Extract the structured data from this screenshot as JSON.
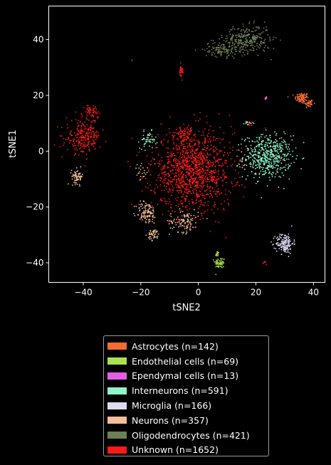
{
  "chart_data": {
    "type": "scatter",
    "xlabel": "tSNE2",
    "ylabel": "tSNE1",
    "xlim": [
      -52,
      44
    ],
    "ylim": [
      -47,
      52
    ],
    "xticks": [
      -40,
      -20,
      0,
      20,
      40
    ],
    "yticks": [
      40,
      20,
      0,
      -20,
      -40
    ],
    "legend_position": "below",
    "series": [
      {
        "name": "Astrocytes (n=142)",
        "color": "#f26b30",
        "clusters": [
          {
            "cx": 36,
            "cy": 19,
            "sx": 1.2,
            "sy": 1.0,
            "n": 100
          },
          {
            "cx": 38.5,
            "cy": 17,
            "sx": 0.8,
            "sy": 0.8,
            "n": 42
          }
        ]
      },
      {
        "name": "Endothelial cells (n=69)",
        "color": "#a9e34b",
        "clusters": [
          {
            "cx": 7.5,
            "cy": -40,
            "sx": 0.9,
            "sy": 1.0,
            "n": 55
          },
          {
            "cx": 6.5,
            "cy": -37,
            "sx": 0.3,
            "sy": 0.6,
            "n": 14
          }
        ]
      },
      {
        "name": "Ependymal cells (n=13)",
        "color": "#e55ee6",
        "clusters": [
          {
            "cx": 23.5,
            "cy": 19,
            "sx": 0.15,
            "sy": 0.2,
            "n": 13
          }
        ]
      },
      {
        "name": "Interneurons (n=591)",
        "color": "#8ff5c8",
        "clusters": [
          {
            "cx": 24,
            "cy": -2,
            "sx": 4.2,
            "sy": 3.8,
            "n": 520
          },
          {
            "cx": -17.5,
            "cy": 4,
            "sx": 1.4,
            "sy": 1.5,
            "n": 55
          },
          {
            "cx": 17.5,
            "cy": 10,
            "sx": 0.8,
            "sy": 0.4,
            "n": 16
          }
        ]
      },
      {
        "name": "Microglia (n=166)",
        "color": "#dddaf2",
        "clusters": [
          {
            "cx": 30,
            "cy": -33,
            "sx": 1.5,
            "sy": 1.8,
            "n": 166
          }
        ]
      },
      {
        "name": "Neurons (n=357)",
        "color": "#f5bf98",
        "clusters": [
          {
            "cx": -18,
            "cy": -22,
            "sx": 1.8,
            "sy": 2.0,
            "n": 110
          },
          {
            "cx": -15.5,
            "cy": -30,
            "sx": 1.0,
            "sy": 1.0,
            "n": 45
          },
          {
            "cx": -5,
            "cy": -25,
            "sx": 2.5,
            "sy": 2.0,
            "n": 110
          },
          {
            "cx": -42,
            "cy": -9,
            "sx": 1.0,
            "sy": 1.3,
            "n": 70
          },
          {
            "cx": -20,
            "cy": -8,
            "sx": 1.2,
            "sy": 1.5,
            "n": 22
          }
        ]
      },
      {
        "name": "Oligodendrocytes (n=421)",
        "color": "#6c7f56",
        "clusters": [
          {
            "cx": 17,
            "cy": 40,
            "sx": 4.0,
            "sy": 2.5,
            "n": 300
          },
          {
            "cx": 8,
            "cy": 36.5,
            "sx": 3.0,
            "sy": 1.3,
            "n": 121
          }
        ]
      },
      {
        "name": "Unknown (n=1652)",
        "color": "#ff1a1a",
        "clusters": [
          {
            "cx": -2,
            "cy": -7,
            "sx": 7.0,
            "sy": 7.0,
            "n": 1250
          },
          {
            "cx": -40,
            "cy": 5,
            "sx": 3.0,
            "sy": 3.0,
            "n": 240
          },
          {
            "cx": -37,
            "cy": 14,
            "sx": 1.2,
            "sy": 1.3,
            "n": 55
          },
          {
            "cx": -6,
            "cy": 29,
            "sx": 0.4,
            "sy": 1.0,
            "n": 30
          },
          {
            "cx": -5,
            "cy": 6,
            "sx": 1.5,
            "sy": 1.8,
            "n": 60
          },
          {
            "cx": 23,
            "cy": -40,
            "sx": 0.5,
            "sy": 0.3,
            "n": 6
          },
          {
            "cx": -23,
            "cy": 32.5,
            "sx": 0.1,
            "sy": 0.1,
            "n": 3
          },
          {
            "cx": 18,
            "cy": 10,
            "sx": 0.5,
            "sy": 0.4,
            "n": 8
          }
        ]
      }
    ]
  }
}
